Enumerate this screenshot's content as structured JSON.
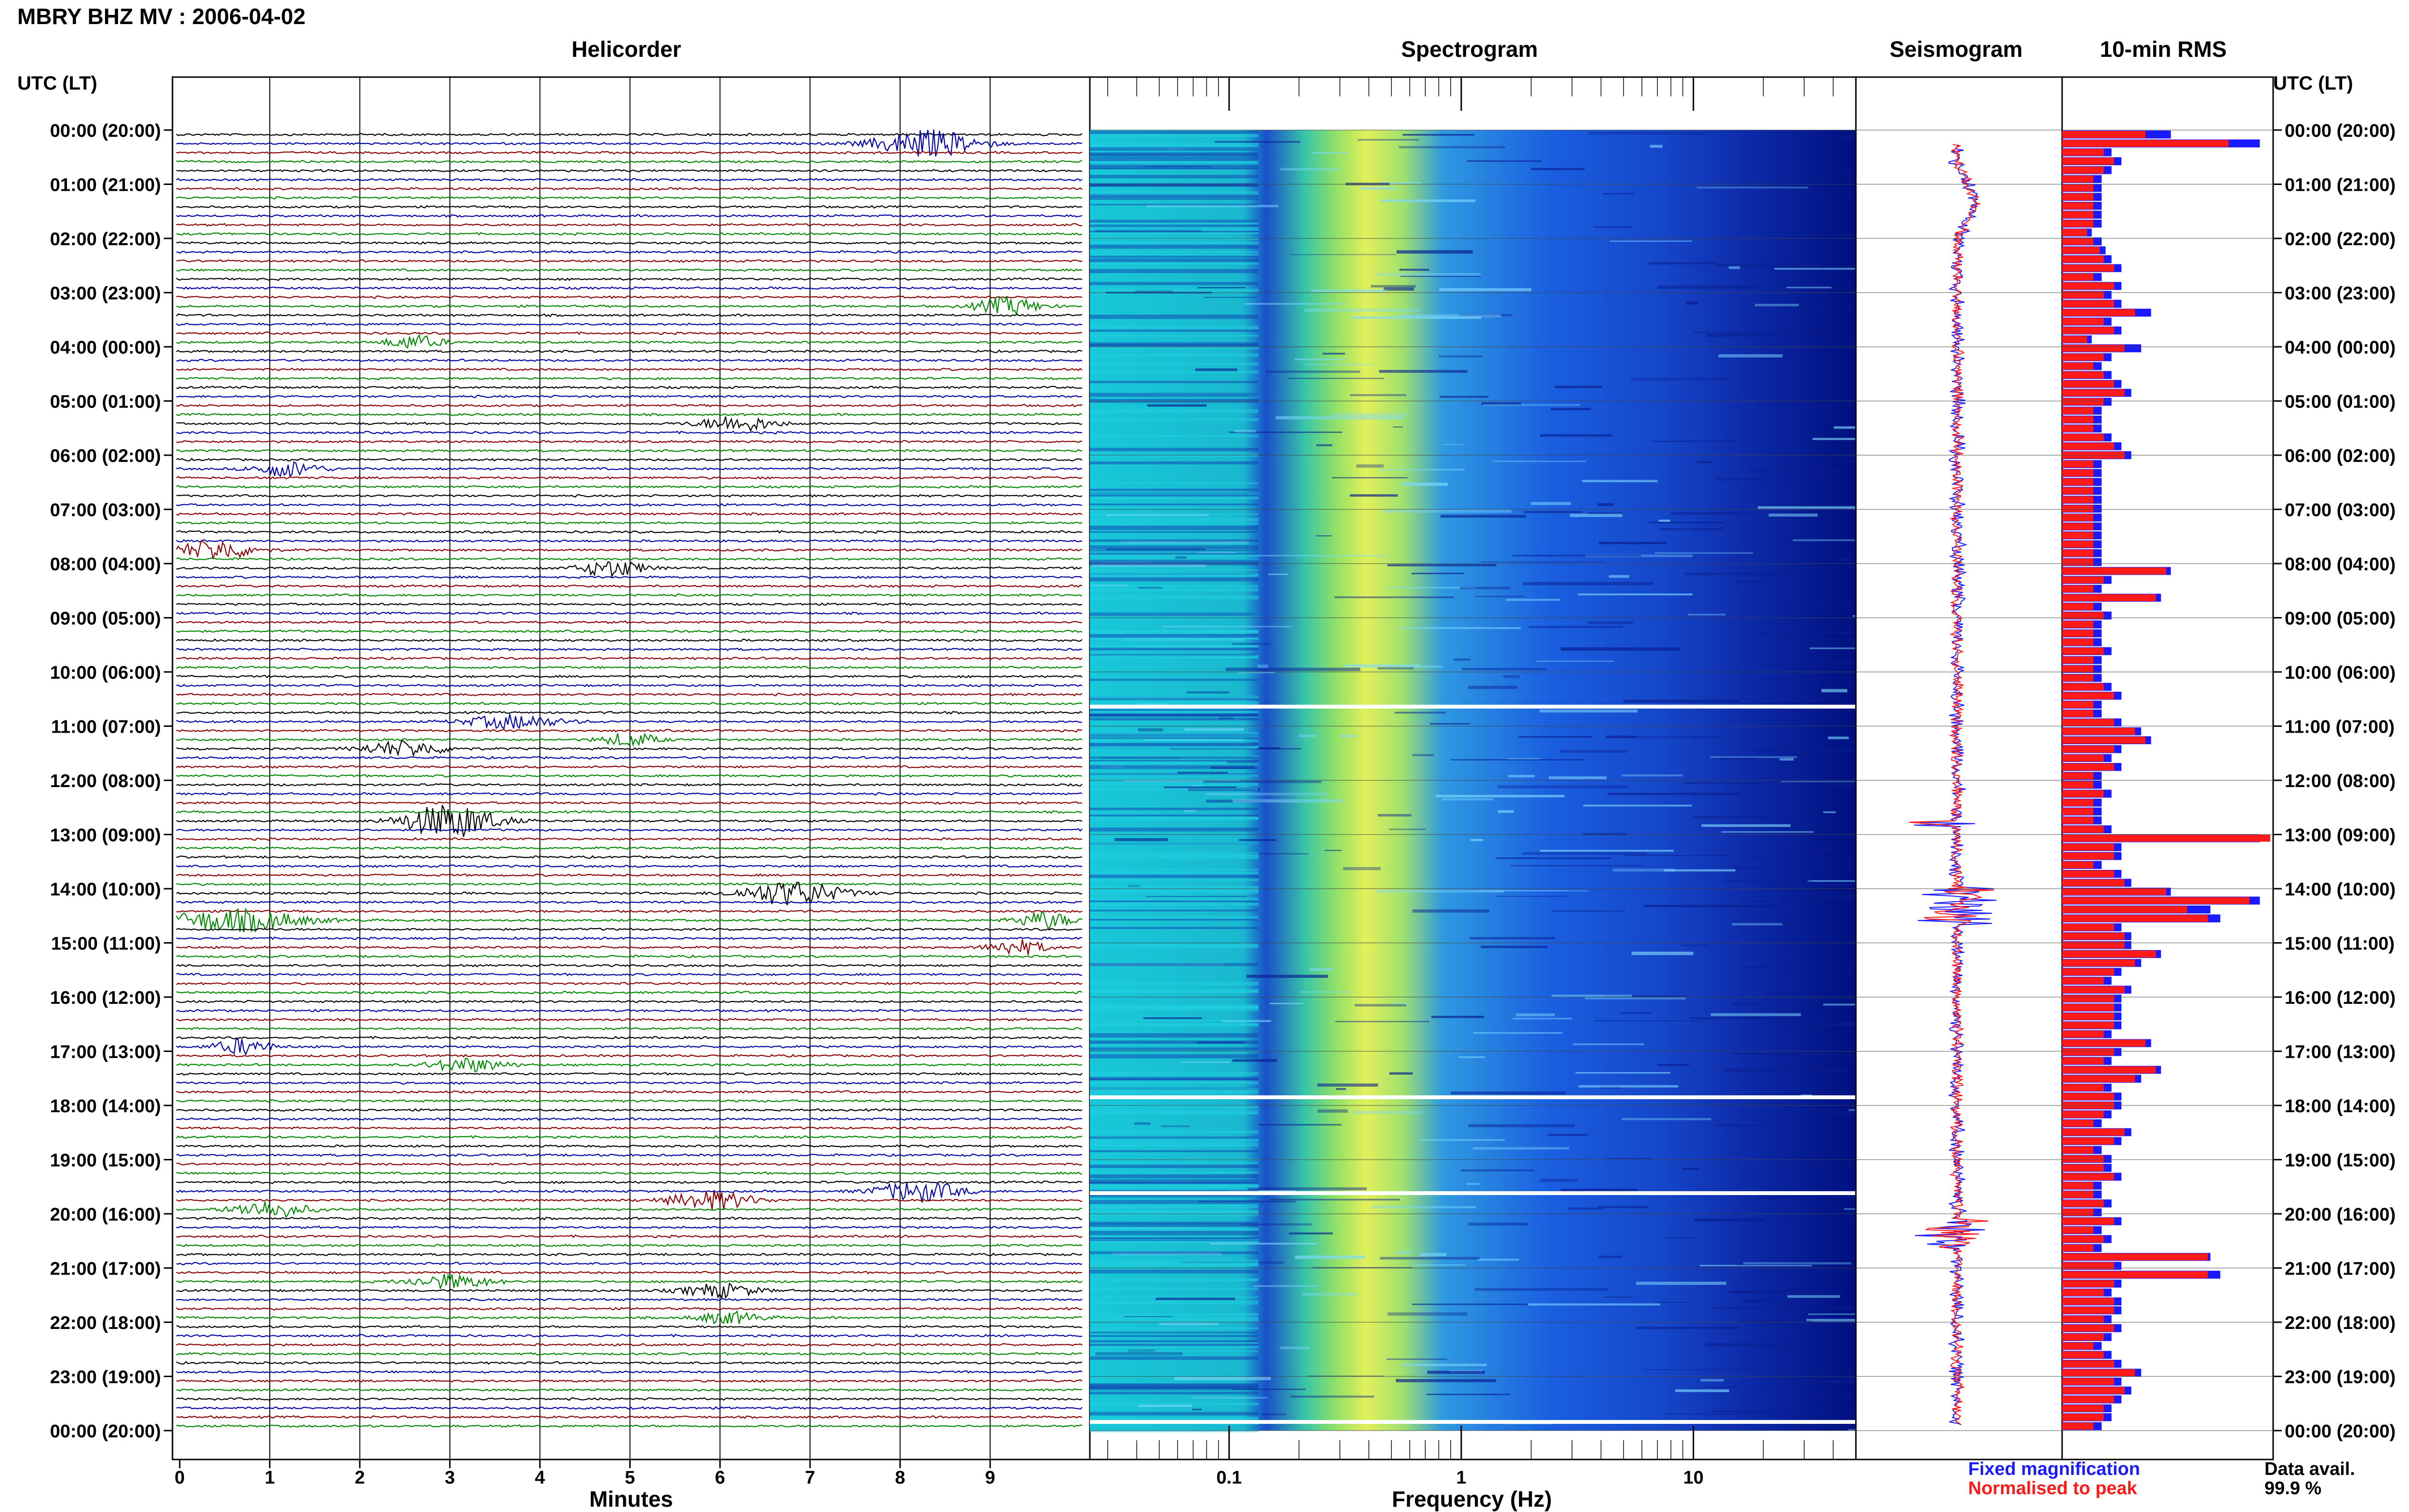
{
  "title": "MBRY BHZ MV : 2006-04-02",
  "panels": {
    "helicorder": "Helicorder",
    "spectrogram": "Spectrogram",
    "seismogram": "Seismogram",
    "rms": "10-min RMS"
  },
  "axis_labels": {
    "time_left": "UTC (LT)",
    "time_right": "UTC (LT)",
    "minutes": "Minutes",
    "frequency": "Frequency (Hz)"
  },
  "time_ticks": [
    "00:00 (20:00)",
    "01:00 (21:00)",
    "02:00 (22:00)",
    "03:00 (23:00)",
    "04:00 (00:00)",
    "05:00 (01:00)",
    "06:00 (02:00)",
    "07:00 (03:00)",
    "08:00 (04:00)",
    "09:00 (05:00)",
    "10:00 (06:00)",
    "11:00 (07:00)",
    "12:00 (08:00)",
    "13:00 (09:00)",
    "14:00 (10:00)",
    "15:00 (11:00)",
    "16:00 (12:00)",
    "17:00 (13:00)",
    "18:00 (14:00)",
    "19:00 (15:00)",
    "20:00 (16:00)",
    "21:00 (17:00)",
    "22:00 (18:00)",
    "23:00 (19:00)",
    "00:00 (20:00)"
  ],
  "minute_ticks": [
    "0",
    "1",
    "2",
    "3",
    "4",
    "5",
    "6",
    "7",
    "8",
    "9"
  ],
  "frequency_ticks": [
    "0.1",
    "1",
    "10"
  ],
  "legend": {
    "fixed": "Fixed magnification",
    "normalised": "Normalised to peak",
    "fixed_color": "#1a1aff",
    "normalised_color": "#ff1a1a"
  },
  "data_avail": {
    "label": "Data avail.",
    "value": "99.9 %"
  },
  "colors": {
    "helicorder_traces": [
      "#000000",
      "#0000aa",
      "#8b0000",
      "#008800"
    ],
    "spectrogram_low": "#00008b",
    "spectrogram_high": "#f5f53c"
  },
  "chart_data": {
    "type": "bar",
    "title": "10-min RMS",
    "ylabel": "UTC (LT)",
    "series": [
      {
        "name": "Fixed magnification",
        "values": [
          0.55,
          1.0,
          0.25,
          0.3,
          0.25,
          0.2,
          0.2,
          0.2,
          0.2,
          0.2,
          0.2,
          0.15,
          0.2,
          0.22,
          0.25,
          0.3,
          0.2,
          0.3,
          0.25,
          0.3,
          0.45,
          0.25,
          0.3,
          0.15,
          0.4,
          0.25,
          0.2,
          0.25,
          0.3,
          0.35,
          0.25,
          0.2,
          0.2,
          0.2,
          0.25,
          0.3,
          0.35,
          0.2,
          0.2,
          0.2,
          0.2,
          0.2,
          0.2,
          0.2,
          0.2,
          0.2,
          0.2,
          0.2,
          0.2,
          0.55,
          0.25,
          0.2,
          0.5,
          0.2,
          0.25,
          0.2,
          0.2,
          0.2,
          0.25,
          0.2,
          0.2,
          0.2,
          0.25,
          0.3,
          0.2,
          0.2,
          0.3,
          0.4,
          0.45,
          0.3,
          0.25,
          0.3,
          0.2,
          0.2,
          0.25,
          0.2,
          0.2,
          0.2,
          0.25,
          1.05,
          0.3,
          0.3,
          0.2,
          0.3,
          0.35,
          0.55,
          1.0,
          0.75,
          0.8,
          0.3,
          0.35,
          0.35,
          0.5,
          0.4,
          0.3,
          0.25,
          0.35,
          0.3,
          0.3,
          0.3,
          0.3,
          0.25,
          0.45,
          0.3,
          0.25,
          0.5,
          0.4,
          0.25,
          0.3,
          0.3,
          0.25,
          0.2,
          0.35,
          0.3,
          0.2,
          0.25,
          0.25,
          0.3,
          0.2,
          0.2,
          0.25,
          0.2,
          0.3,
          0.2,
          0.25,
          0.2,
          0.75,
          0.3,
          0.8,
          0.3,
          0.25,
          0.3,
          0.3,
          0.25,
          0.3,
          0.25,
          0.2,
          0.25,
          0.3,
          0.4,
          0.3,
          0.35,
          0.3,
          0.25,
          0.25,
          0.2
        ]
      },
      {
        "name": "Normalised to peak",
        "values": [
          0.4,
          0.8,
          0.2,
          0.25,
          0.2,
          0.15,
          0.15,
          0.15,
          0.15,
          0.15,
          0.15,
          0.12,
          0.15,
          0.18,
          0.2,
          0.25,
          0.15,
          0.25,
          0.2,
          0.25,
          0.35,
          0.2,
          0.25,
          0.12,
          0.3,
          0.2,
          0.15,
          0.2,
          0.25,
          0.3,
          0.2,
          0.15,
          0.15,
          0.15,
          0.2,
          0.25,
          0.3,
          0.15,
          0.15,
          0.15,
          0.15,
          0.15,
          0.15,
          0.15,
          0.15,
          0.15,
          0.15,
          0.15,
          0.15,
          0.5,
          0.2,
          0.15,
          0.45,
          0.15,
          0.2,
          0.15,
          0.15,
          0.15,
          0.2,
          0.15,
          0.15,
          0.15,
          0.2,
          0.25,
          0.15,
          0.15,
          0.25,
          0.35,
          0.4,
          0.25,
          0.2,
          0.25,
          0.15,
          0.15,
          0.2,
          0.15,
          0.15,
          0.15,
          0.2,
          1.05,
          0.25,
          0.25,
          0.15,
          0.25,
          0.3,
          0.5,
          0.9,
          0.6,
          0.7,
          0.25,
          0.3,
          0.3,
          0.45,
          0.35,
          0.25,
          0.2,
          0.3,
          0.25,
          0.25,
          0.25,
          0.25,
          0.2,
          0.4,
          0.25,
          0.2,
          0.45,
          0.35,
          0.2,
          0.25,
          0.25,
          0.2,
          0.15,
          0.3,
          0.25,
          0.15,
          0.2,
          0.2,
          0.25,
          0.15,
          0.15,
          0.2,
          0.15,
          0.25,
          0.15,
          0.2,
          0.15,
          0.7,
          0.25,
          0.7,
          0.25,
          0.2,
          0.25,
          0.25,
          0.2,
          0.25,
          0.2,
          0.15,
          0.2,
          0.25,
          0.35,
          0.25,
          0.3,
          0.25,
          0.2,
          0.2,
          0.15
        ]
      }
    ],
    "events": [
      {
        "row": 1,
        "minute": 8.3,
        "amp": 1.6,
        "width": 1.1
      },
      {
        "row": 19,
        "minute": 9.2,
        "amp": 1.0,
        "width": 0.7
      },
      {
        "row": 23,
        "minute": 2.6,
        "amp": 0.8,
        "width": 0.6
      },
      {
        "row": 32,
        "minute": 6.2,
        "amp": 0.9,
        "width": 0.8
      },
      {
        "row": 37,
        "minute": 1.2,
        "amp": 0.9,
        "width": 0.7
      },
      {
        "row": 46,
        "minute": 0.4,
        "amp": 1.2,
        "width": 0.8
      },
      {
        "row": 48,
        "minute": 4.8,
        "amp": 1.0,
        "width": 0.7
      },
      {
        "row": 68,
        "minute": 2.5,
        "amp": 0.9,
        "width": 0.9
      },
      {
        "row": 65,
        "minute": 3.7,
        "amp": 0.8,
        "width": 1.0
      },
      {
        "row": 67,
        "minute": 5.0,
        "amp": 0.8,
        "width": 0.6
      },
      {
        "row": 76,
        "minute": 3.0,
        "amp": 2.0,
        "width": 1.0
      },
      {
        "row": 84,
        "minute": 6.8,
        "amp": 1.4,
        "width": 1.1
      },
      {
        "row": 87,
        "minute": 0.6,
        "amp": 1.3,
        "width": 1.5
      },
      {
        "row": 87,
        "minute": 9.6,
        "amp": 1.0,
        "width": 0.6
      },
      {
        "row": 90,
        "minute": 9.3,
        "amp": 0.9,
        "width": 0.6
      },
      {
        "row": 101,
        "minute": 0.7,
        "amp": 0.9,
        "width": 0.6
      },
      {
        "row": 103,
        "minute": 3.2,
        "amp": 0.8,
        "width": 0.8
      },
      {
        "row": 117,
        "minute": 8.2,
        "amp": 1.2,
        "width": 0.9
      },
      {
        "row": 118,
        "minute": 5.9,
        "amp": 1.1,
        "width": 0.9
      },
      {
        "row": 119,
        "minute": 1.0,
        "amp": 1.0,
        "width": 0.8
      },
      {
        "row": 127,
        "minute": 3.0,
        "amp": 0.8,
        "width": 0.9
      },
      {
        "row": 128,
        "minute": 6.0,
        "amp": 0.8,
        "width": 0.8
      },
      {
        "row": 131,
        "minute": 6.1,
        "amp": 0.7,
        "width": 0.7
      }
    ]
  }
}
